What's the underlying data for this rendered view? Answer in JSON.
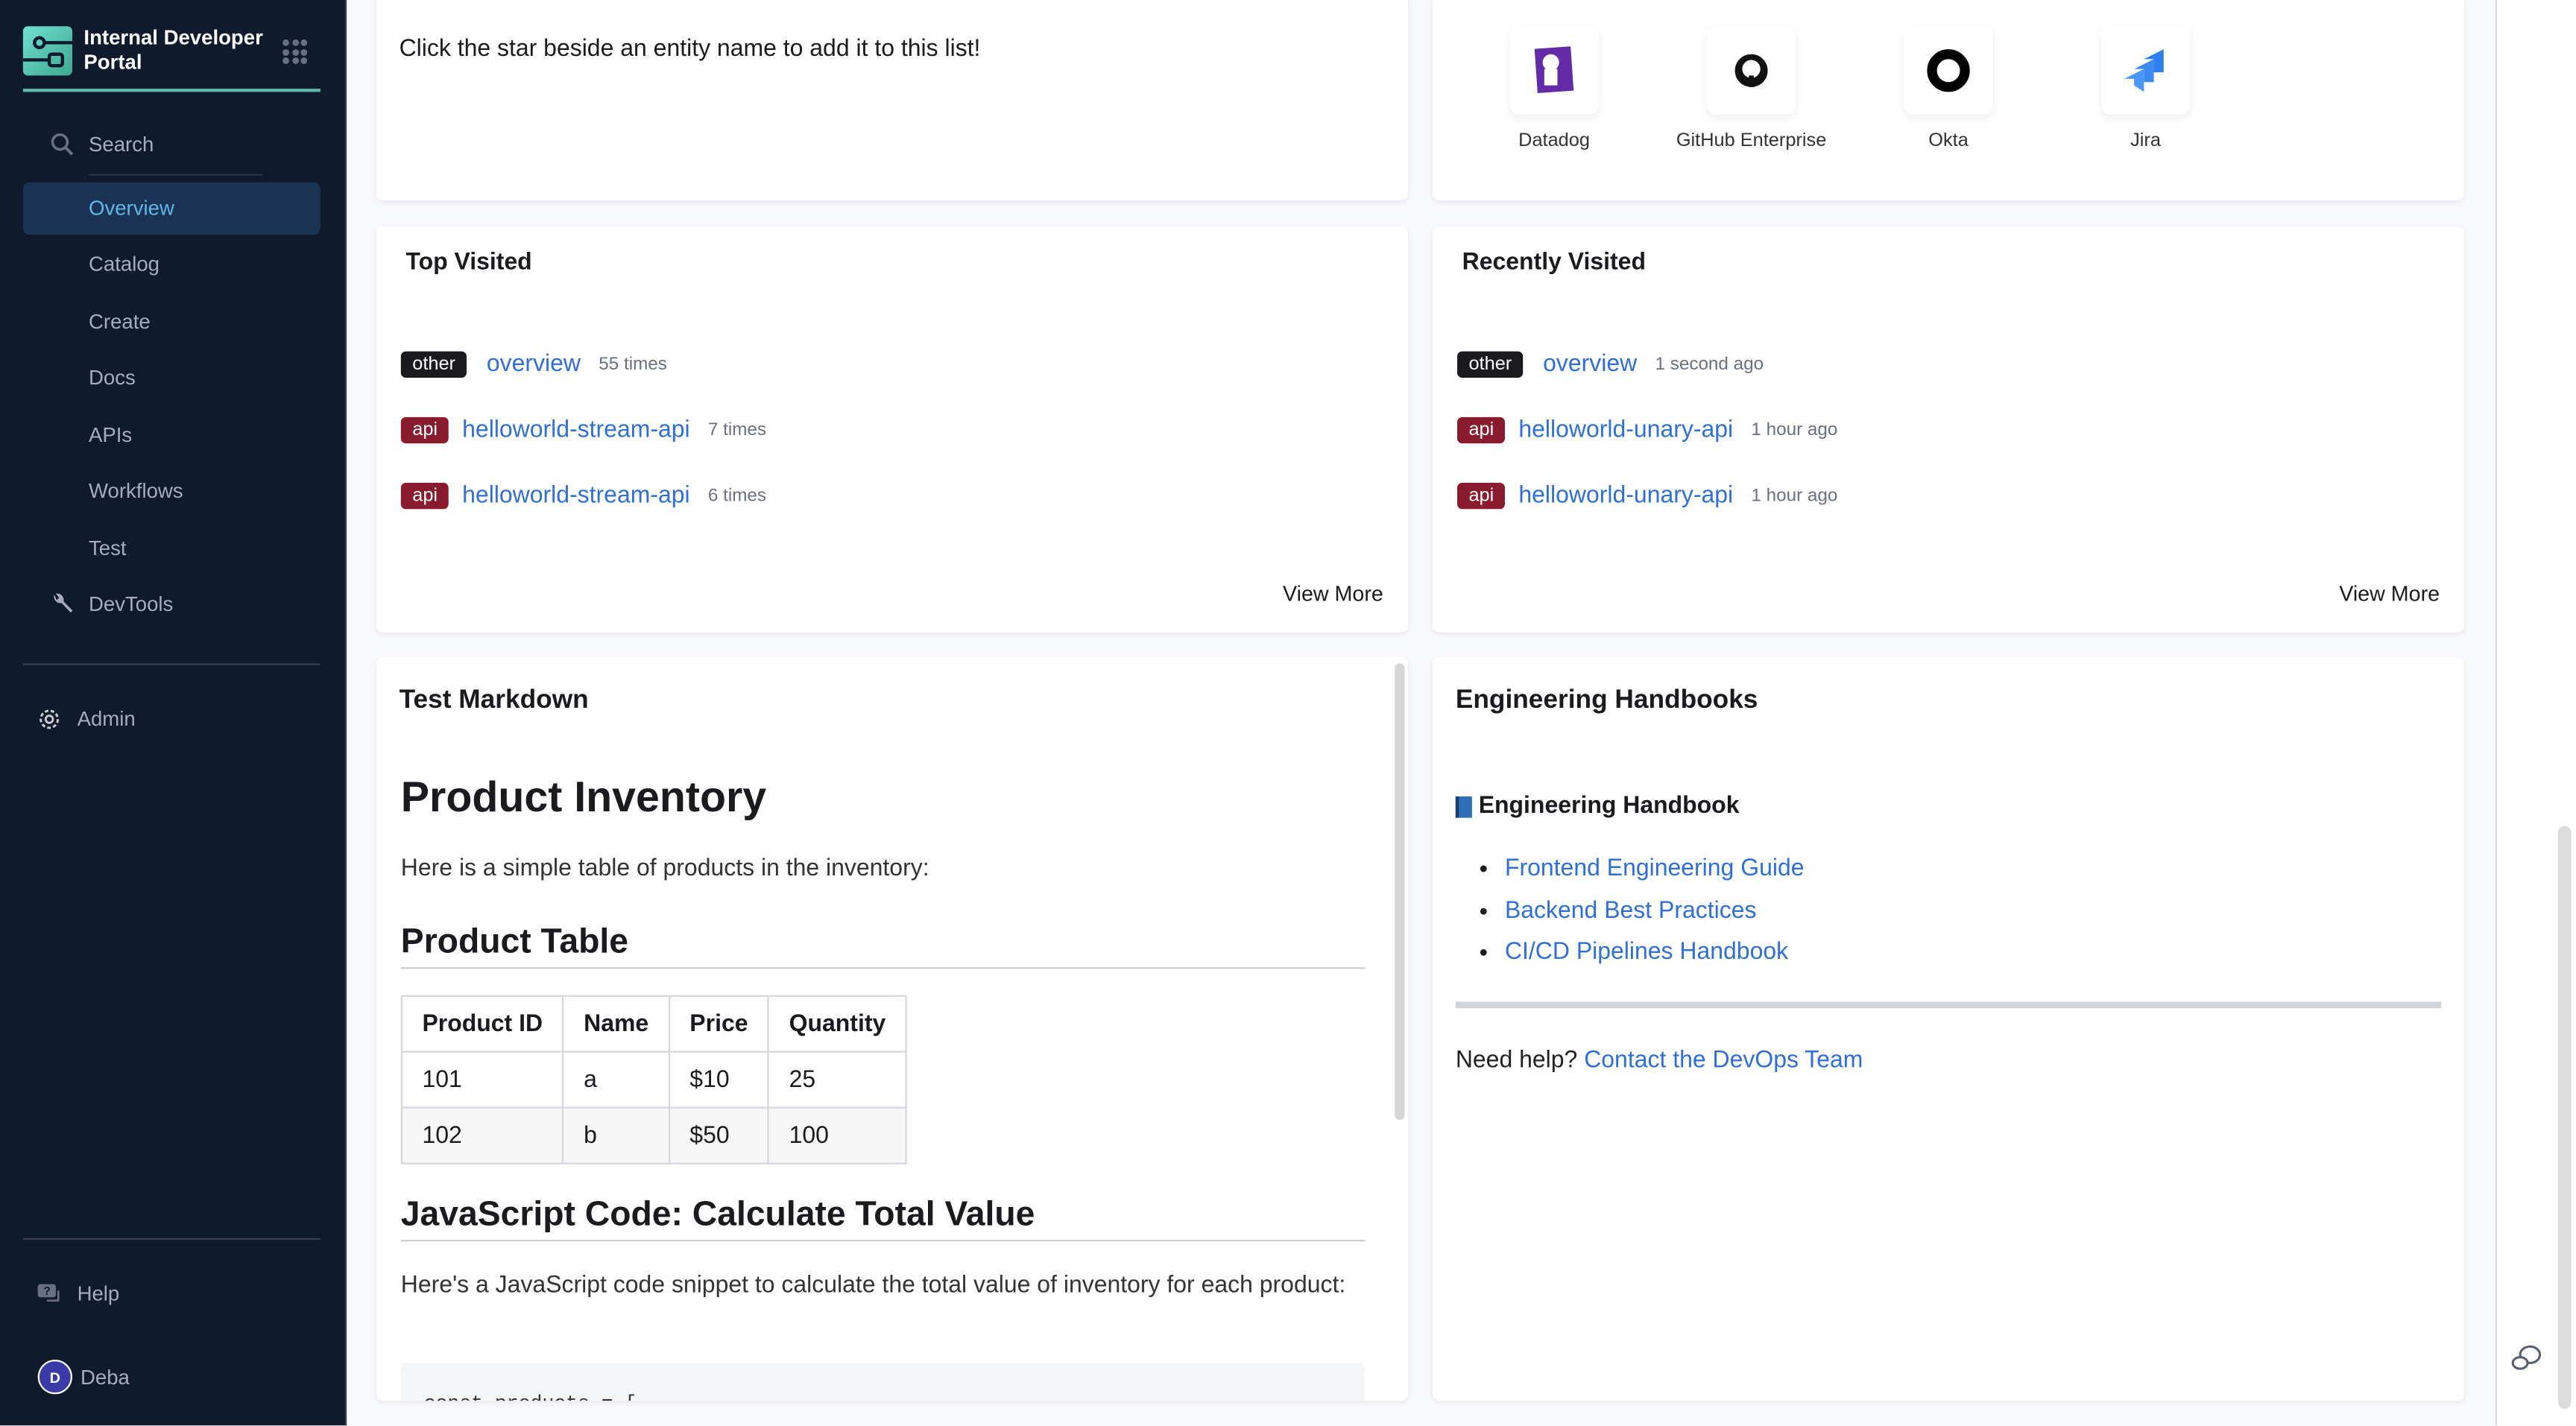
{
  "sidebar": {
    "brand": "Internal Developer Portal",
    "search_label": "Search",
    "items": [
      {
        "label": "Overview",
        "active": true
      },
      {
        "label": "Catalog"
      },
      {
        "label": "Create"
      },
      {
        "label": "Docs"
      },
      {
        "label": "APIs"
      },
      {
        "label": "Workflows"
      },
      {
        "label": "Test"
      },
      {
        "label": "DevTools",
        "icon": "wrench-icon"
      }
    ],
    "admin_label": "Admin",
    "help_label": "Help",
    "user": {
      "initial": "D",
      "name": "Deba"
    },
    "colors": {
      "background": "#101a2d",
      "active_bg": "#1a3254",
      "active_text": "#5fb7e6",
      "accent": "#5fb8a5"
    }
  },
  "starred": {
    "message": "Click the star beside an entity name to add it to this list!"
  },
  "toolkit": {
    "apps": [
      {
        "label": "Datadog",
        "icon": "datadog-icon"
      },
      {
        "label": "GitHub Enterprise",
        "icon": "github-icon"
      },
      {
        "label": "Okta",
        "icon": "okta-icon"
      },
      {
        "label": "Jira",
        "icon": "jira-icon"
      }
    ]
  },
  "top_visited": {
    "title": "Top Visited",
    "items": [
      {
        "kind": "other",
        "name": "overview",
        "meta": "55 times"
      },
      {
        "kind": "api",
        "name": "helloworld-stream-api",
        "meta": "7 times"
      },
      {
        "kind": "api",
        "name": "helloworld-stream-api",
        "meta": "6 times"
      }
    ],
    "view_more": "View More"
  },
  "recently_visited": {
    "title": "Recently Visited",
    "items": [
      {
        "kind": "other",
        "name": "overview",
        "meta": "1 second ago"
      },
      {
        "kind": "api",
        "name": "helloworld-unary-api",
        "meta": "1 hour ago"
      },
      {
        "kind": "api",
        "name": "helloworld-unary-api",
        "meta": "1 hour ago"
      }
    ],
    "view_more": "View More"
  },
  "markdown": {
    "title": "Test Markdown",
    "h1": "Product Inventory",
    "intro": "Here is a simple table of products in the inventory:",
    "h2_table": "Product Table",
    "table": {
      "headers": [
        "Product ID",
        "Name",
        "Price",
        "Quantity"
      ],
      "rows": [
        [
          "101",
          "a",
          "$10",
          "25"
        ],
        [
          "102",
          "b",
          "$50",
          "100"
        ]
      ]
    },
    "h2_code": "JavaScript Code: Calculate Total Value",
    "code_intro": "Here's a JavaScript code snippet to calculate the total value of inventory for each product:",
    "code_first_line": "const products = ["
  },
  "handbooks": {
    "title": "Engineering Handbooks",
    "heading": "Engineering Handbook",
    "links": [
      "Frontend Engineering Guide",
      "Backend Best Practices",
      "CI/CD Pipelines Handbook"
    ],
    "help_text": "Need help?",
    "help_link": "Contact the DevOps Team"
  },
  "colors": {
    "link": "#2f6fd6",
    "tag_other": "#1b1b1f",
    "tag_api": "#8a1a2e",
    "page_bg": "#f8f9fc"
  }
}
